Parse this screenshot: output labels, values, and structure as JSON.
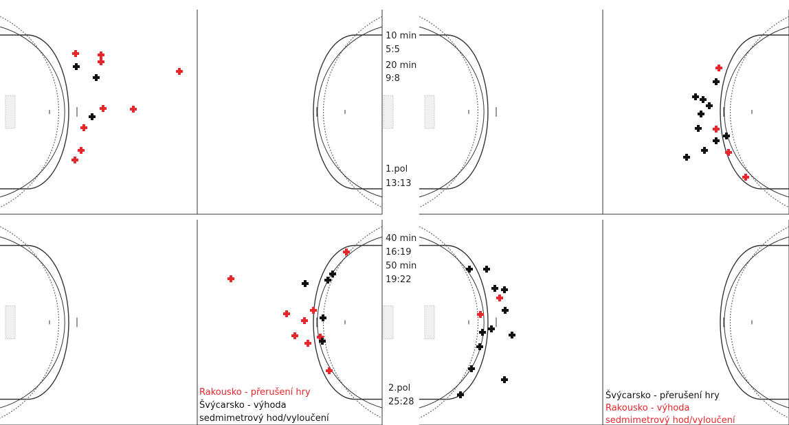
{
  "colors": {
    "red": "#e8272d",
    "black": "#111111",
    "line": "#333333"
  },
  "center_labels": {
    "top": [
      "10 min",
      "5:5",
      "20 min",
      "9:8"
    ],
    "half1": [
      "1.pol",
      "13:13"
    ],
    "bottom": [
      "40 min",
      "16:19",
      "50 min",
      "19:22"
    ],
    "half2": [
      "2.pol",
      "25:28"
    ]
  },
  "legend_left": {
    "red": "Rakousko - přerušení hry",
    "black1": "Švýcarsko - výhoda",
    "black2": "sedmimetrový hod/vyloučení"
  },
  "legend_right": {
    "black": "Švýcarsko - přerušení hry",
    "red1": "Rakousko - výhoda",
    "red2": "sedmimetrový hod/vyloučení"
  },
  "panels": {
    "p1": {
      "red": [
        [
          110,
          78
        ],
        [
          147,
          80
        ],
        [
          147,
          90
        ],
        [
          261,
          104
        ],
        [
          150,
          158
        ],
        [
          194,
          159
        ],
        [
          122,
          186
        ],
        [
          118,
          219
        ],
        [
          109,
          233
        ]
      ],
      "black": [
        [
          111,
          97
        ],
        [
          140,
          113
        ],
        [
          134,
          170
        ]
      ]
    },
    "p2": {
      "red": [
        [
          1046,
          99
        ],
        [
          1042,
          188
        ],
        [
          1060,
          222
        ],
        [
          1085,
          258
        ]
      ],
      "black": [
        [
          1042,
          119
        ],
        [
          1012,
          141
        ],
        [
          1023,
          145
        ],
        [
          1032,
          154
        ],
        [
          1020,
          166
        ],
        [
          1016,
          187
        ],
        [
          1057,
          198
        ],
        [
          1042,
          205
        ],
        [
          1025,
          219
        ],
        [
          999,
          229
        ]
      ]
    },
    "p3": {
      "red": [
        [
          504,
          367
        ],
        [
          336,
          406
        ],
        [
          417,
          457
        ],
        [
          456,
          452
        ],
        [
          443,
          467
        ],
        [
          429,
          489
        ],
        [
          466,
          491
        ],
        [
          448,
          500
        ],
        [
          479,
          540
        ]
      ],
      "black": [
        [
          484,
          399
        ],
        [
          477,
          408
        ],
        [
          444,
          413
        ],
        [
          470,
          463
        ],
        [
          469,
          497
        ]
      ]
    },
    "p4": {
      "red": [
        [
          727,
          434
        ],
        [
          699,
          458
        ]
      ],
      "black": [
        [
          683,
          392
        ],
        [
          708,
          392
        ],
        [
          720,
          420
        ],
        [
          734,
          422
        ],
        [
          735,
          452
        ],
        [
          715,
          479
        ],
        [
          702,
          484
        ],
        [
          745,
          488
        ],
        [
          698,
          505
        ],
        [
          686,
          537
        ],
        [
          734,
          553
        ],
        [
          670,
          575
        ]
      ]
    }
  }
}
